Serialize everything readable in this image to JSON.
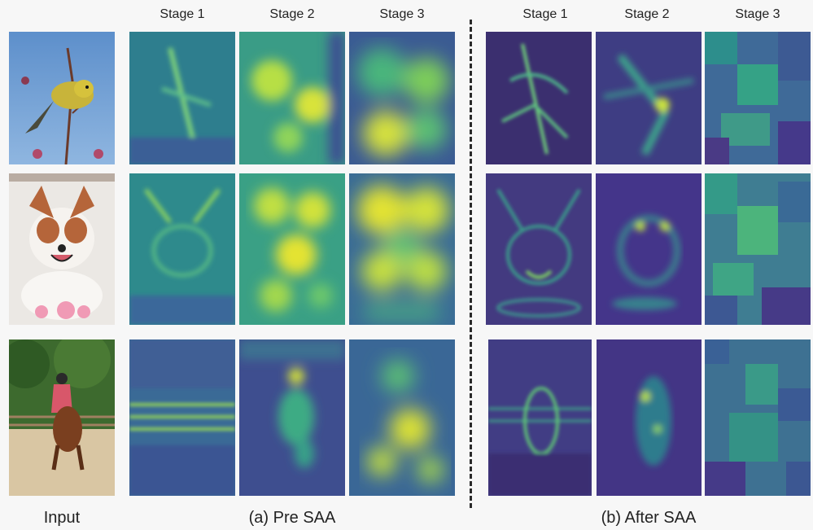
{
  "stage_labels": [
    "Stage 1",
    "Stage 2",
    "Stage 3"
  ],
  "captions": {
    "input": "Input",
    "pre": "(a) Pre SAA",
    "after": "(b) After SAA"
  },
  "rows": [
    {
      "subject": "bird"
    },
    {
      "subject": "dog"
    },
    {
      "subject": "horse-rider"
    }
  ],
  "colors": {
    "viridis_low": "#3b2f6f",
    "viridis_mid": "#2a9d8f",
    "viridis_high": "#fde725",
    "divider": "#2a2a2a"
  }
}
